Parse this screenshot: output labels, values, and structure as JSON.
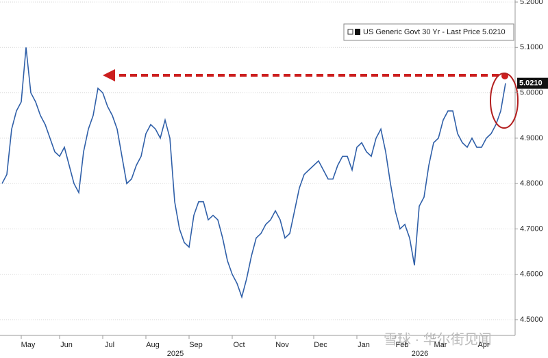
{
  "chart_data": {
    "type": "line",
    "legend": "US Generic Govt 30 Yr - Last Price 5.0210",
    "last_price": {
      "value": 5.021,
      "label": "5.0210"
    },
    "color": "#2f5fa8",
    "categories": [
      null,
      null,
      null,
      null,
      "May",
      null,
      null,
      null,
      null,
      null,
      null,
      null,
      "Jun",
      null,
      null,
      null,
      null,
      null,
      null,
      null,
      null,
      "Jul",
      null,
      null,
      null,
      null,
      null,
      null,
      null,
      null,
      "Aug",
      null,
      null,
      null,
      null,
      null,
      null,
      null,
      null,
      "Sep",
      null,
      null,
      null,
      null,
      null,
      null,
      null,
      null,
      "Oct",
      null,
      null,
      null,
      null,
      null,
      null,
      null,
      null,
      "Nov",
      null,
      null,
      null,
      null,
      null,
      null,
      null,
      "Dec",
      null,
      null,
      null,
      null,
      null,
      null,
      null,
      null,
      "Jan",
      null,
      null,
      null,
      null,
      null,
      null,
      null,
      "Feb",
      null,
      null,
      null,
      null,
      null,
      null,
      null,
      "Mar",
      null,
      null,
      null,
      null,
      null,
      null,
      null,
      null,
      "Apr",
      null,
      null,
      null,
      null,
      null,
      null
    ],
    "values": [
      4.8,
      4.82,
      4.92,
      4.96,
      4.98,
      5.1,
      5.0,
      4.98,
      4.95,
      4.93,
      4.9,
      4.87,
      4.86,
      4.88,
      4.84,
      4.8,
      4.78,
      4.87,
      4.92,
      4.95,
      5.01,
      5.0,
      4.97,
      4.95,
      4.92,
      4.86,
      4.8,
      4.81,
      4.84,
      4.86,
      4.91,
      4.93,
      4.92,
      4.9,
      4.94,
      4.9,
      4.76,
      4.7,
      4.67,
      4.66,
      4.73,
      4.76,
      4.76,
      4.72,
      4.73,
      4.72,
      4.68,
      4.63,
      4.6,
      4.58,
      4.55,
      4.59,
      4.64,
      4.68,
      4.69,
      4.71,
      4.72,
      4.74,
      4.72,
      4.68,
      4.69,
      4.74,
      4.79,
      4.82,
      4.83,
      4.84,
      4.85,
      4.83,
      4.81,
      4.81,
      4.84,
      4.86,
      4.86,
      4.83,
      4.88,
      4.89,
      4.87,
      4.86,
      4.9,
      4.92,
      4.87,
      4.8,
      4.74,
      4.7,
      4.71,
      4.68,
      4.62,
      4.75,
      4.77,
      4.84,
      4.89,
      4.9,
      4.94,
      4.96,
      4.96,
      4.91,
      4.89,
      4.88,
      4.9,
      4.88,
      4.88,
      4.9,
      4.91,
      4.93,
      4.96,
      5.021
    ],
    "year_labels": [
      "2025",
      "2026"
    ],
    "ylim": [
      4.5,
      5.2
    ],
    "yticks": [
      {
        "value": 4.5,
        "label": "4.5000"
      },
      {
        "value": 4.6,
        "label": "4.6000"
      },
      {
        "value": 4.7,
        "label": "4.7000"
      },
      {
        "value": 4.8,
        "label": "4.8000"
      },
      {
        "value": 4.9,
        "label": "4.9000"
      },
      {
        "value": 5.0,
        "label": "5.0000"
      },
      {
        "value": 5.1,
        "label": "5.1000"
      },
      {
        "value": 5.2,
        "label": "5.2000"
      }
    ],
    "grid": true,
    "watermark": "雪球 · 华尔街见闻"
  }
}
